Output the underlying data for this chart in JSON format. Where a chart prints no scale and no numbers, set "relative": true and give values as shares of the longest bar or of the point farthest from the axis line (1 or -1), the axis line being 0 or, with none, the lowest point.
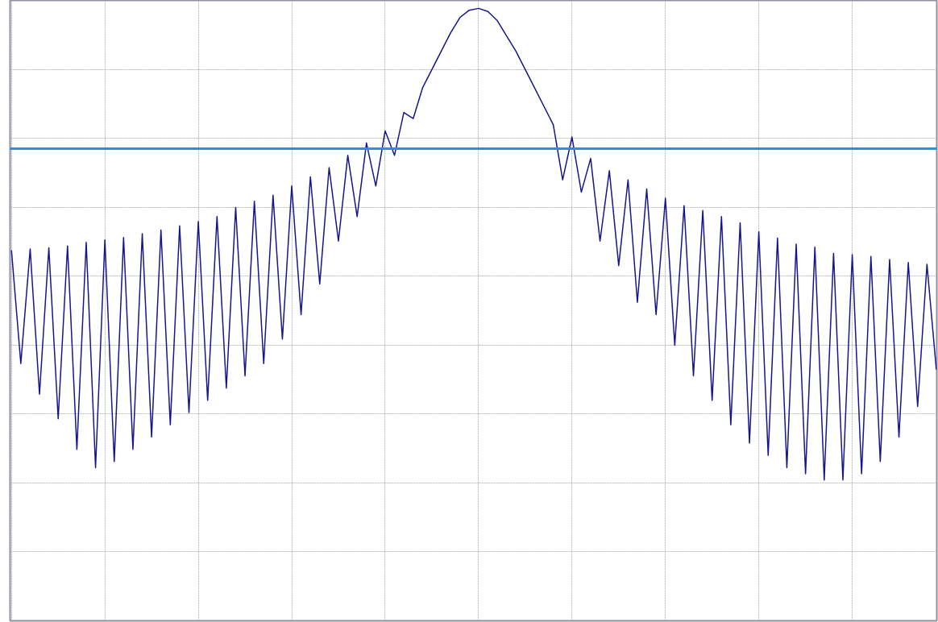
{
  "chart_data": {
    "type": "line",
    "relative": true,
    "grid": true,
    "line_style": "solid",
    "marker": "none",
    "categories": [
      null,
      null,
      null,
      null,
      null,
      null,
      null,
      null,
      null,
      null,
      null,
      null,
      null,
      null,
      null,
      null,
      null,
      null,
      null,
      null,
      null,
      null,
      null,
      null,
      null,
      null,
      null,
      null,
      null,
      null,
      null,
      null,
      null,
      null,
      null,
      null,
      null,
      null,
      null,
      null,
      null,
      null,
      null,
      null,
      null,
      null,
      null,
      null,
      null,
      null,
      null,
      null,
      null,
      null,
      null,
      null,
      null,
      null,
      null,
      null,
      null,
      null,
      null,
      null,
      null,
      null,
      null,
      null,
      null,
      null,
      null,
      null,
      null,
      null,
      null,
      null,
      null,
      null,
      null,
      null,
      null,
      null,
      null,
      null,
      null,
      null,
      null,
      null,
      null,
      null,
      null,
      null,
      null,
      null,
      null,
      null,
      null,
      null,
      null,
      null
    ],
    "series": [
      {
        "color": "#16168c",
        "values": [
          0.605,
          0.42,
          0.607,
          0.37,
          0.609,
          0.33,
          0.612,
          0.28,
          0.618,
          0.25,
          0.622,
          0.26,
          0.626,
          0.28,
          0.632,
          0.3,
          0.638,
          0.32,
          0.645,
          0.34,
          0.652,
          0.36,
          0.66,
          0.38,
          0.675,
          0.4,
          0.685,
          0.42,
          0.695,
          0.46,
          0.71,
          0.5,
          0.725,
          0.55,
          0.74,
          0.62,
          0.76,
          0.66,
          0.78,
          0.71,
          0.8,
          0.76,
          0.83,
          0.82,
          0.87,
          0.9,
          0.93,
          0.96,
          0.985,
          0.997,
          1.0,
          0.995,
          0.98,
          0.955,
          0.93,
          0.9,
          0.87,
          0.84,
          0.81,
          0.72,
          0.79,
          0.7,
          0.755,
          0.62,
          0.735,
          0.58,
          0.72,
          0.52,
          0.705,
          0.5,
          0.69,
          0.45,
          0.678,
          0.4,
          0.67,
          0.36,
          0.66,
          0.32,
          0.65,
          0.29,
          0.635,
          0.27,
          0.625,
          0.25,
          0.615,
          0.24,
          0.61,
          0.23,
          0.6,
          0.23,
          0.598,
          0.24,
          0.595,
          0.26,
          0.59,
          0.3,
          0.585,
          0.35,
          0.582,
          0.41
        ]
      }
    ],
    "ref_lines": [
      {
        "axis": "y",
        "value": 0.771,
        "color": "#2a8fdc",
        "line_style": "solid"
      }
    ]
  }
}
